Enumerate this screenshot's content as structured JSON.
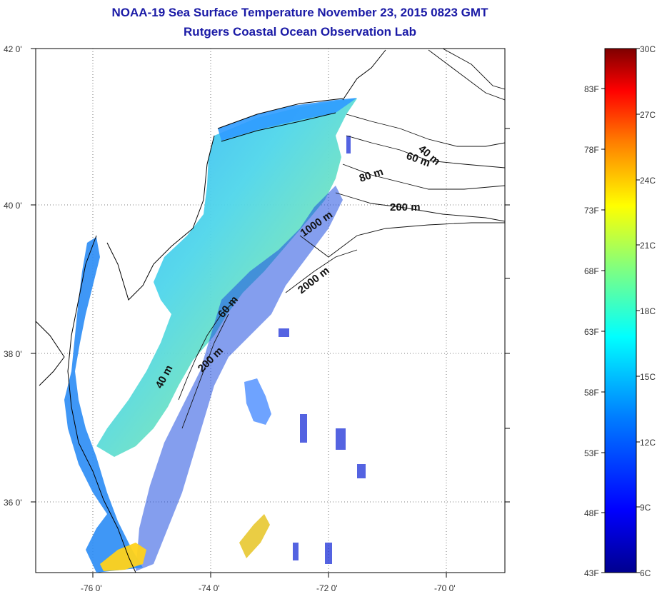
{
  "title": {
    "line1": "NOAA-19 Sea Surface Temperature November 23, 2015 0823 GMT",
    "line2": "Rutgers Coastal Ocean Observation Lab"
  },
  "axes": {
    "lat_labels": [
      "42 0'",
      "40 0'",
      "38 0'",
      "36 0'"
    ],
    "lon_labels": [
      "-76 0'",
      "-74 0'",
      "-72 0'",
      "-70 0'"
    ]
  },
  "contours": [
    "40 m",
    "60 m",
    "80 m",
    "200 m",
    "1000 m",
    "2000 m",
    "60 m",
    "40 m",
    "200 m"
  ],
  "colorbar": {
    "celsius_labels": [
      "30C",
      "27C",
      "24C",
      "21C",
      "18C",
      "15C",
      "12C",
      "9C",
      "6C"
    ],
    "fahrenheit_labels": [
      "83F",
      "78F",
      "73F",
      "68F",
      "63F",
      "58F",
      "53F",
      "48F",
      "43F"
    ],
    "colors": [
      "#7f0000",
      "#ff0000",
      "#ff8000",
      "#ffff00",
      "#80ff80",
      "#00ffff",
      "#0080ff",
      "#0000ff",
      "#00008f"
    ]
  }
}
